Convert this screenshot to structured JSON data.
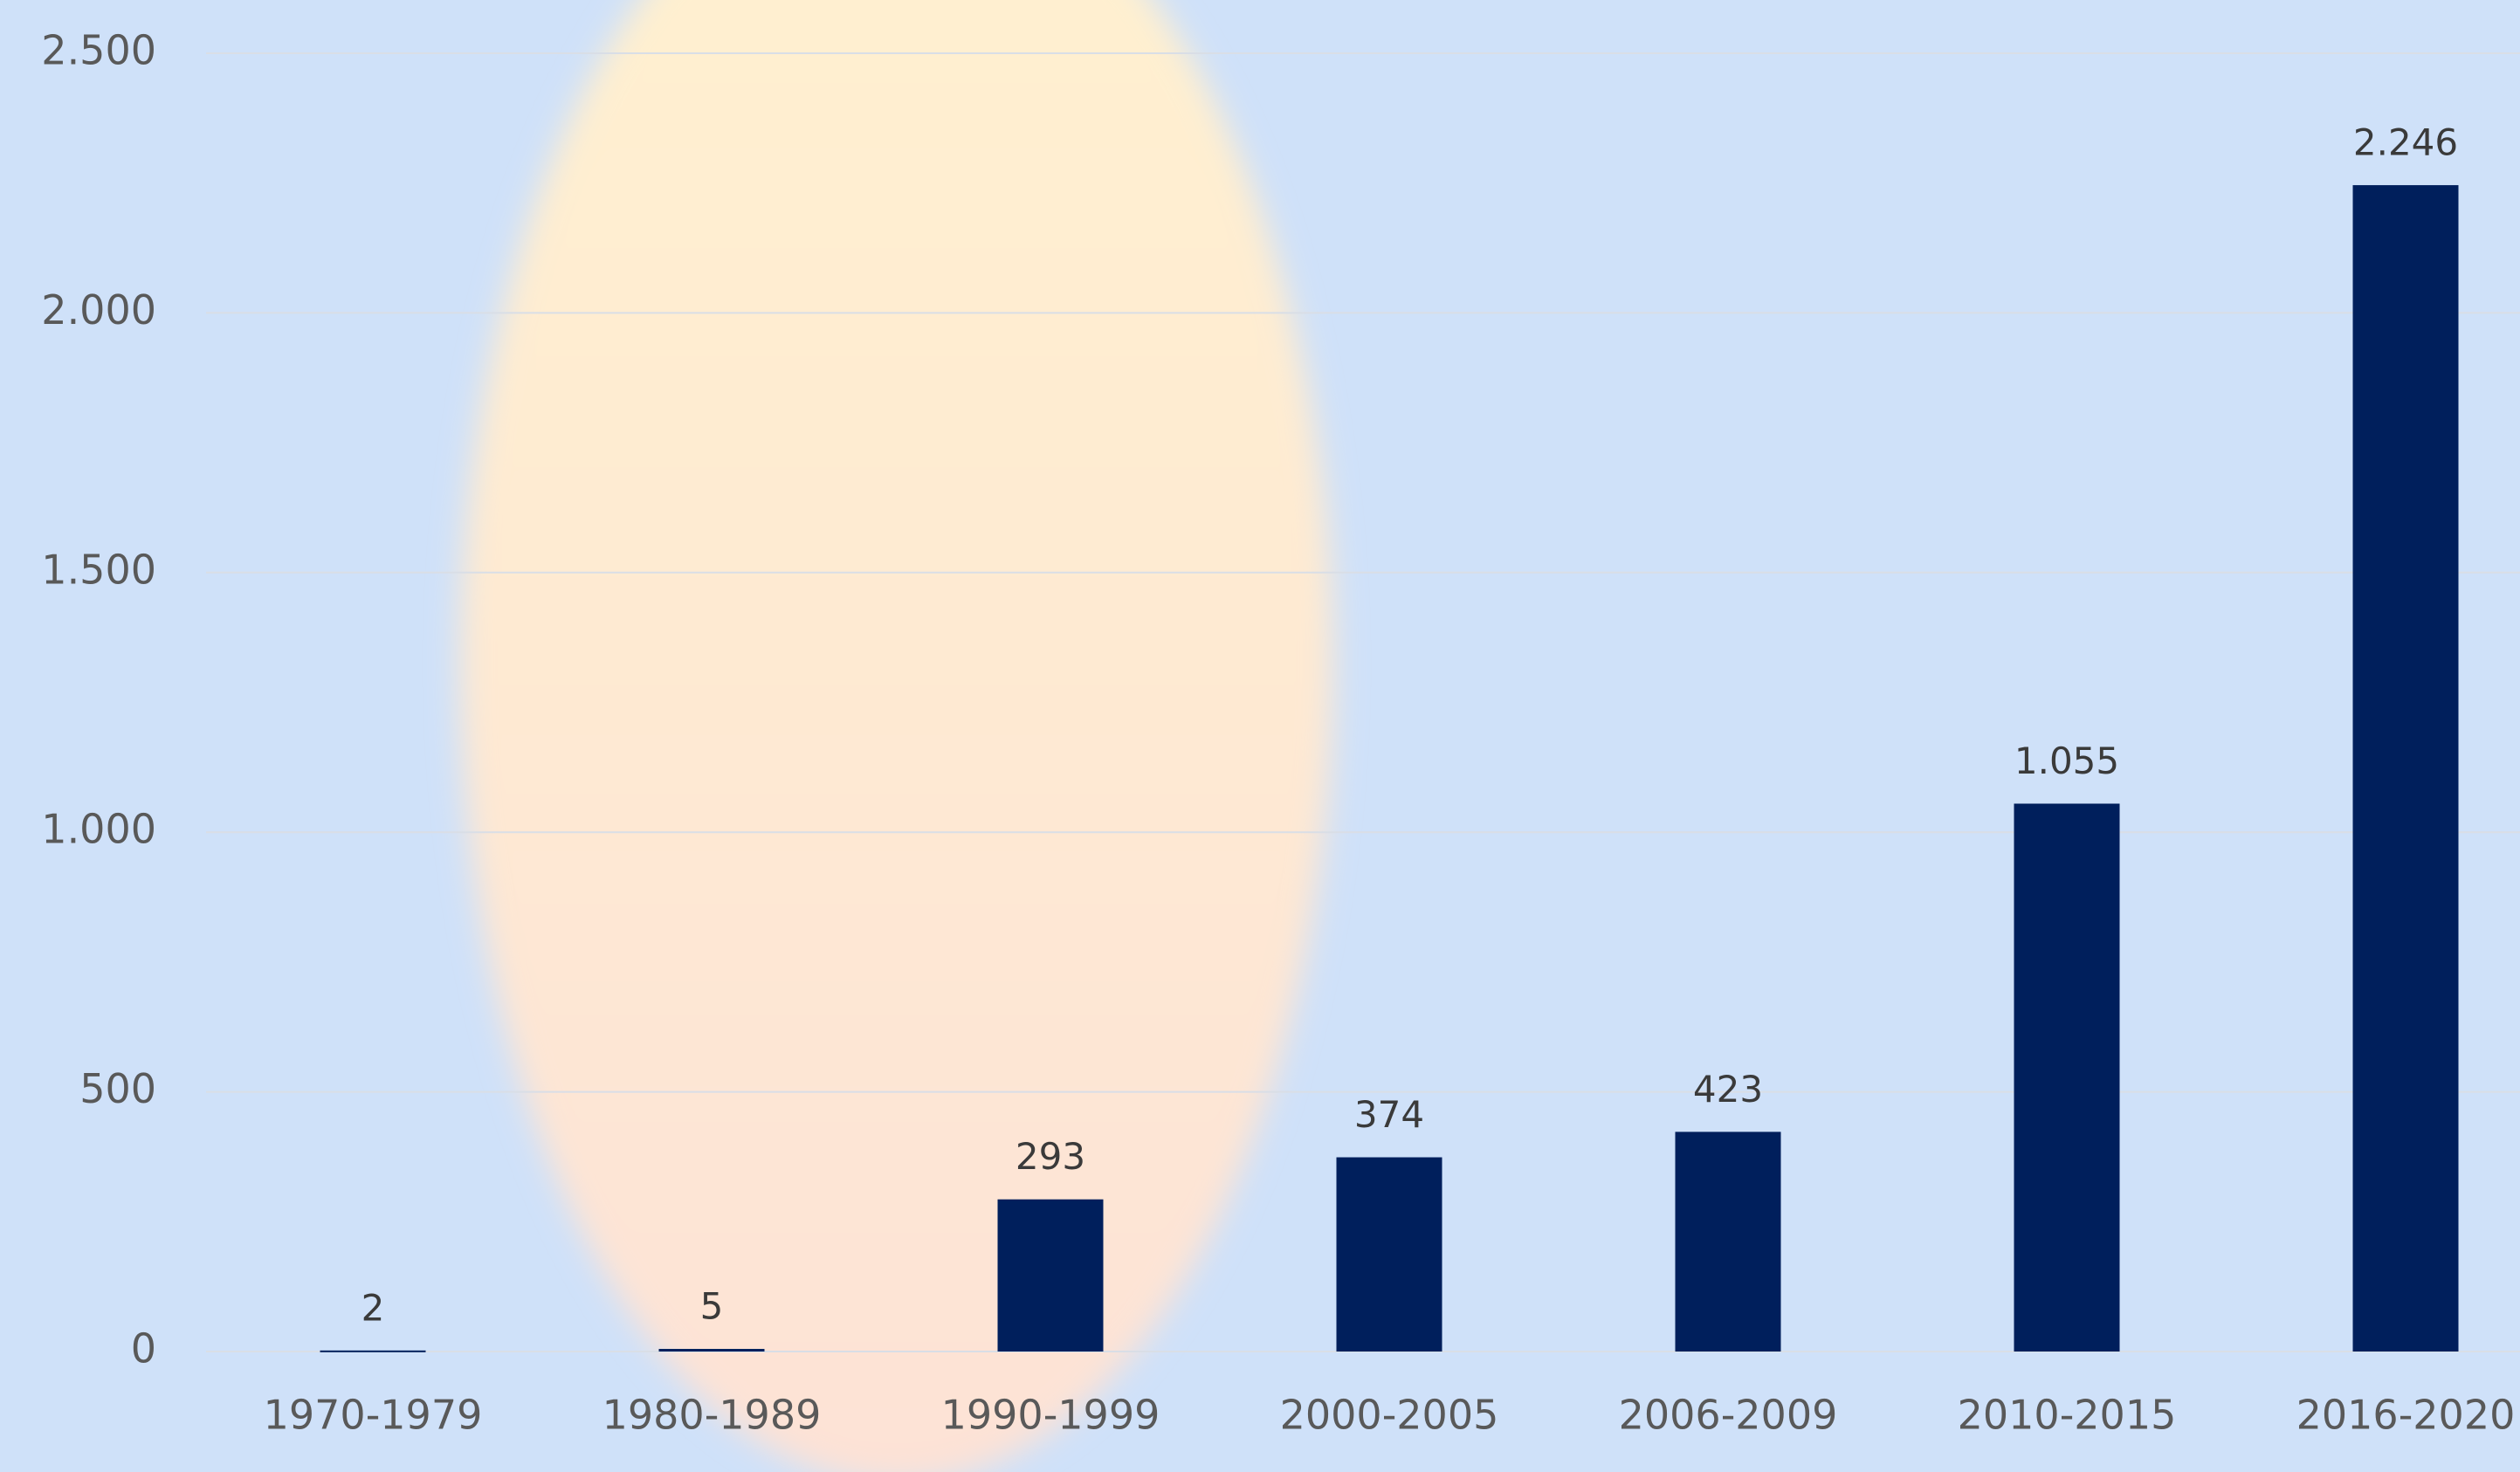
{
  "chart_data": {
    "type": "bar",
    "categories": [
      "1970-1979",
      "1980-1989",
      "1990-1999",
      "2000-2005",
      "2006-2009",
      "2010-2015",
      "2016-2020"
    ],
    "values": [
      2,
      5,
      293,
      374,
      423,
      1055,
      2246
    ],
    "value_labels": [
      "2",
      "5",
      "293",
      "374",
      "423",
      "1.055",
      "2.246"
    ],
    "color": "#001f5c",
    "ylim": [
      0,
      2500
    ],
    "yticks": [
      0,
      500,
      {
        "value": 1000,
        "label": "1.000"
      },
      {
        "value": 1500,
        "label": "1.500"
      },
      {
        "value": 2000,
        "label": "2.000"
      },
      {
        "value": 2500,
        "label": "2.500"
      }
    ],
    "grid": true
  }
}
